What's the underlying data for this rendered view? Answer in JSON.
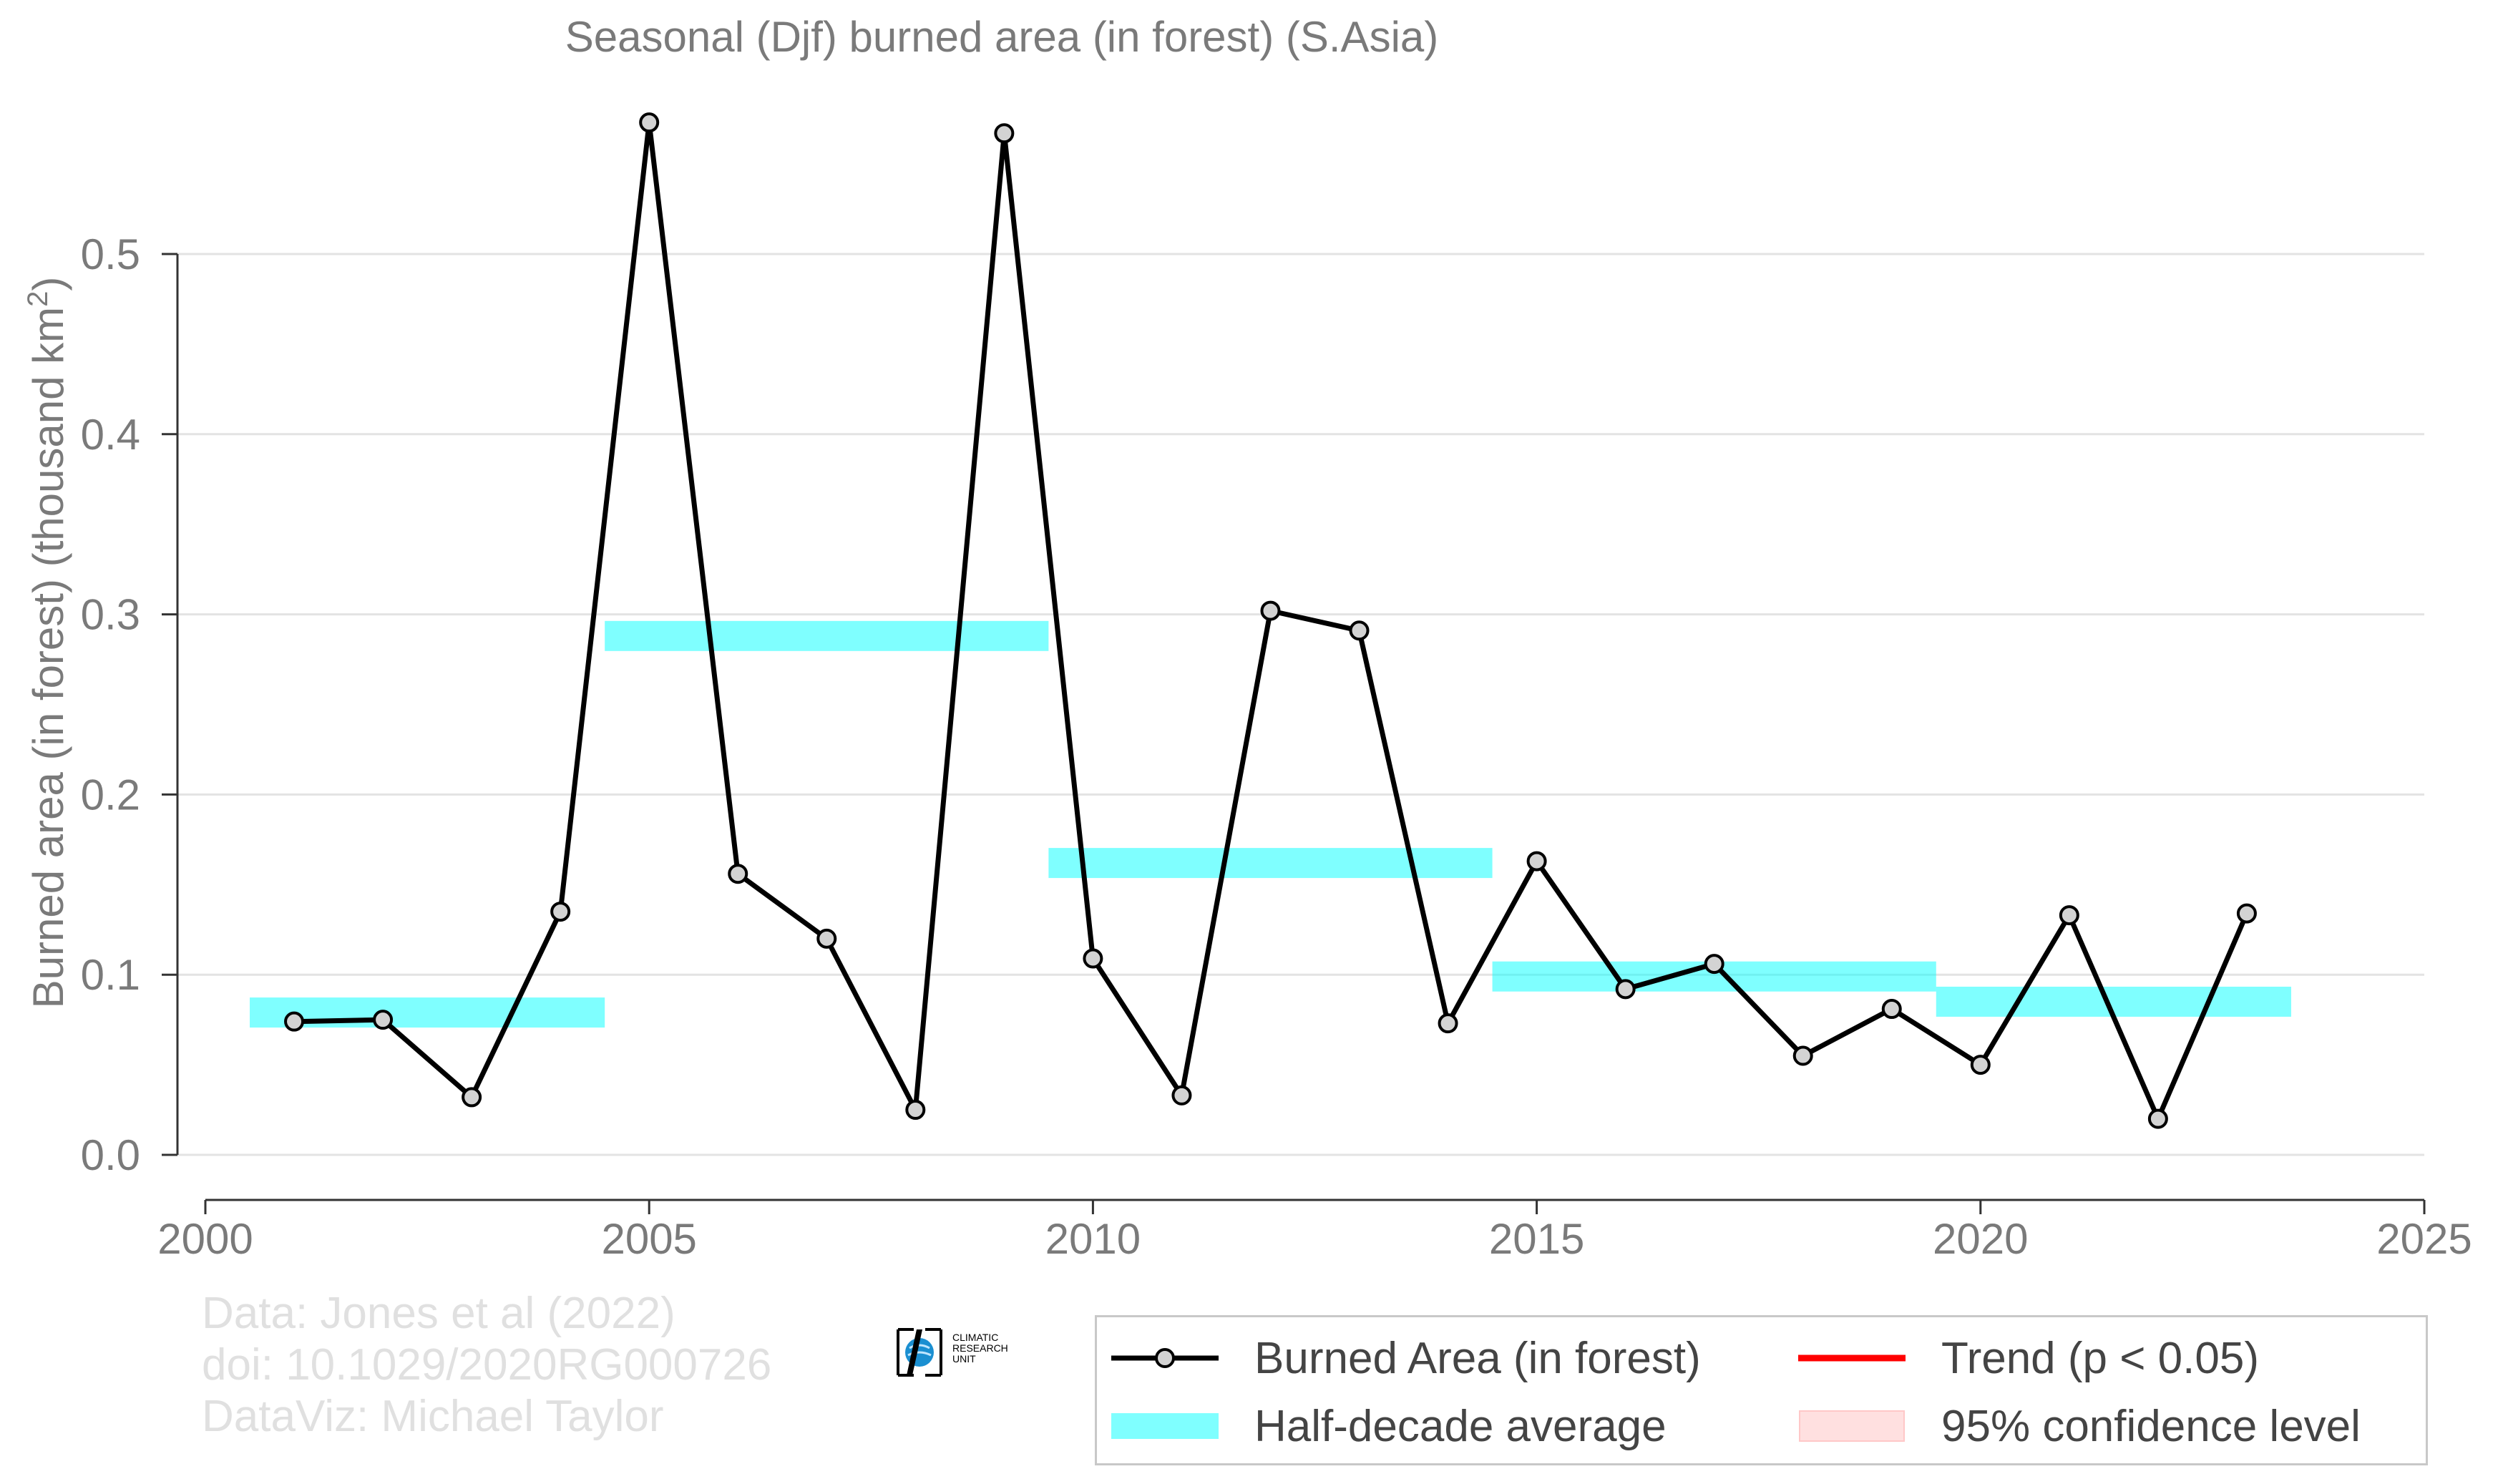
{
  "chart_data": {
    "type": "line",
    "title": "Seasonal (Djf) burned area (in forest) (S.Asia)",
    "ylabel_main": "Burned area (in forest) (thousand km",
    "ylabel_sup": "2",
    "ylabel_close": ")",
    "xlabel": "",
    "xlim": [
      2000,
      2025
    ],
    "ylim": [
      0,
      0.5
    ],
    "x_ticks": [
      2000,
      2005,
      2010,
      2015,
      2020,
      2025
    ],
    "x_tick_labels": [
      "2000",
      "2005",
      "2010",
      "2015",
      "2020",
      "2025"
    ],
    "y_ticks": [
      0,
      0.1,
      0.2,
      0.3,
      0.4,
      0.5
    ],
    "y_tick_labels": [
      "0.0",
      "0.1",
      "0.2",
      "0.3",
      "0.4",
      "0.5"
    ],
    "grid": "horizontal",
    "legend_position": "bottom-right",
    "series": [
      {
        "name": "Burned Area (in forest)",
        "color": "#000000",
        "marker_fill": "#d3d3d3",
        "x": [
          2001,
          2002,
          2003,
          2004,
          2005,
          2006,
          2007,
          2008,
          2009,
          2010,
          2011,
          2012,
          2013,
          2014,
          2015,
          2016,
          2017,
          2018,
          2019,
          2020,
          2021,
          2022,
          2023
        ],
        "y": [
          0.074,
          0.075,
          0.032,
          0.135,
          0.573,
          0.156,
          0.12,
          0.025,
          0.567,
          0.109,
          0.033,
          0.302,
          0.291,
          0.073,
          0.163,
          0.092,
          0.106,
          0.055,
          0.081,
          0.05,
          0.133,
          0.02,
          0.134
        ]
      }
    ],
    "half_decade_averages": {
      "name": "Half-decade average",
      "color": "#00ffff",
      "segments": [
        {
          "x_start": 2000.5,
          "x_end": 2004.5,
          "value": 0.079
        },
        {
          "x_start": 2004.5,
          "x_end": 2009.5,
          "value": 0.288
        },
        {
          "x_start": 2009.5,
          "x_end": 2014.5,
          "value": 0.162
        },
        {
          "x_start": 2014.5,
          "x_end": 2019.5,
          "value": 0.099
        },
        {
          "x_start": 2019.5,
          "x_end": 2023.5,
          "value": 0.085
        }
      ]
    },
    "legend": [
      {
        "key": "line-marker",
        "label": "Burned Area (in forest)",
        "color": "#000000"
      },
      {
        "key": "band",
        "label": "Half-decade average",
        "color": "#00ffff"
      },
      {
        "key": "line",
        "label": "Trend (p < 0.05)",
        "color": "#ff0000"
      },
      {
        "key": "box",
        "label": "95% confidence level",
        "color": "#ffc8c8"
      }
    ]
  },
  "credits": {
    "line1": "Data: Jones et al (2022)",
    "line2": "doi: 10.1029/2020RG000726",
    "line3": "DataViz: Michael Taylor"
  },
  "logo": {
    "line1": "CLIMATIC",
    "line2": "RESEARCH",
    "line3": "UNIT"
  }
}
